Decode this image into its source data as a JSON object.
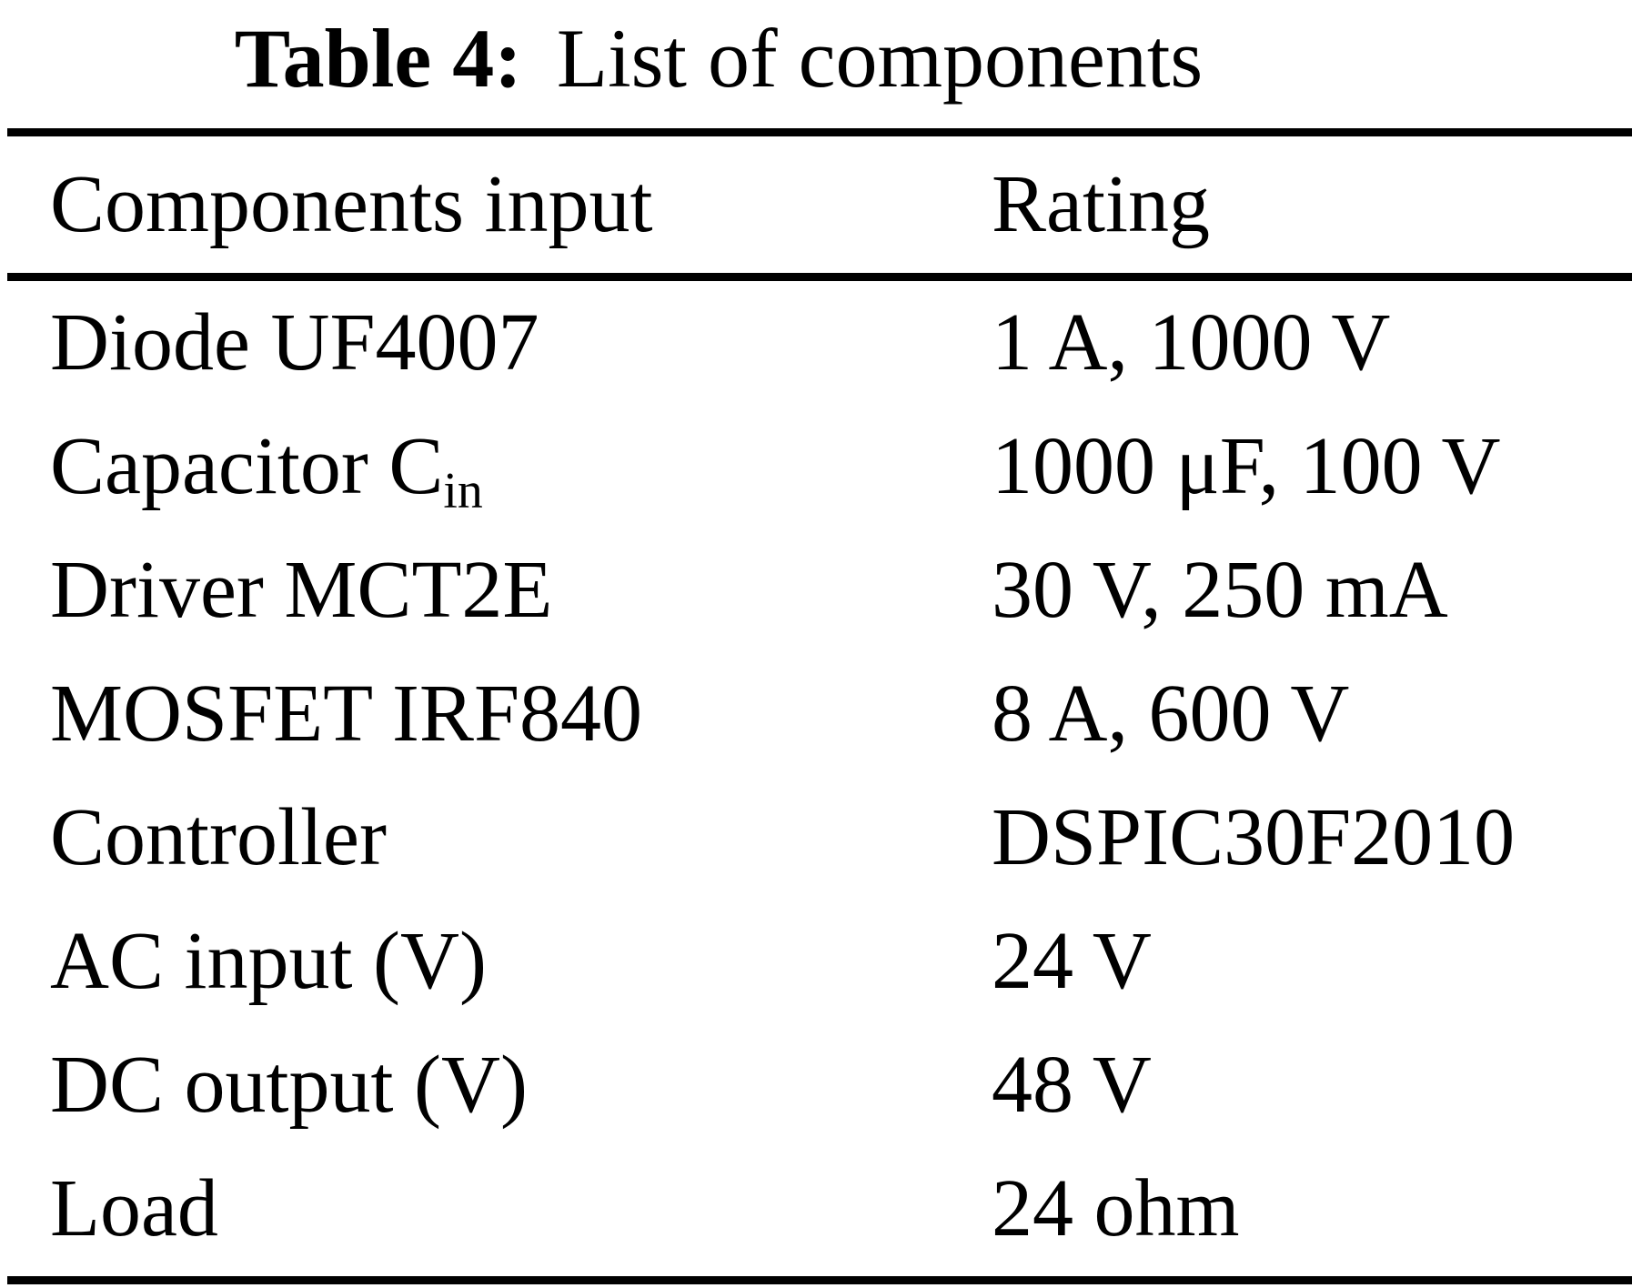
{
  "title": {
    "label": "Table 4:",
    "text": "List of components"
  },
  "table": {
    "headers": {
      "component": "Components input",
      "rating": "Rating"
    },
    "rows": [
      {
        "component": "Diode UF4007",
        "rating": "1 A, 1000 V"
      },
      {
        "component": "Capacitor C",
        "component_sub": "in",
        "rating": "1000 μF, 100 V"
      },
      {
        "component": "Driver MCT2E",
        "rating": "30 V, 250 mA"
      },
      {
        "component": "MOSFET IRF840",
        "rating": "8 A, 600 V"
      },
      {
        "component": "Controller",
        "rating": "DSPIC30F2010"
      },
      {
        "component": "AC input (V)",
        "rating": "24 V"
      },
      {
        "component": "DC output (V)",
        "rating": "48 V"
      },
      {
        "component": "Load",
        "rating": "24 ohm"
      }
    ]
  },
  "colors": {
    "text": "#000000",
    "background": "#ffffff",
    "rule": "#000000"
  }
}
